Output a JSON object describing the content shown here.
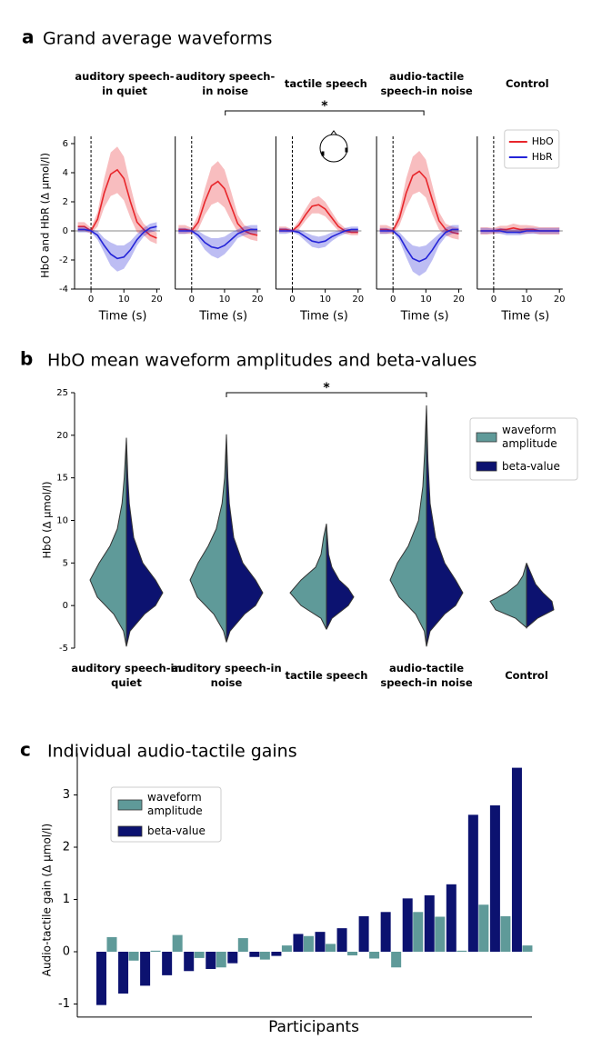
{
  "chart_data": [
    {
      "type": "line",
      "panel": "a",
      "title": "Grand average waveforms",
      "ylabel": "HbO and HbR (Δ µmol/l)",
      "xlabel": "Time (s)",
      "x": [
        -4,
        -2,
        0,
        2,
        4,
        6,
        8,
        10,
        12,
        14,
        16,
        18,
        20
      ],
      "xlim": [
        -5,
        21
      ],
      "xticks": [
        0,
        10,
        20
      ],
      "ylim": [
        -4,
        6.5
      ],
      "yticks": [
        -4,
        -2,
        0,
        2,
        4,
        6
      ],
      "annotation": "*",
      "annotation_between": [
        1,
        3
      ],
      "legend_panel": 4,
      "series": [
        {
          "name": "HbO",
          "color": "#e8262b"
        },
        {
          "name": "HbR",
          "color": "#2424d8"
        }
      ],
      "panels": [
        {
          "title": "auditory speech-in quiet",
          "series": [
            {
              "values": [
                0.3,
                0.3,
                0,
                0.8,
                2.6,
                3.9,
                4.2,
                3.6,
                2.0,
                0.6,
                0.1,
                -0.3,
                -0.5
              ],
              "error": [
                0.3,
                0.3,
                0.2,
                0.5,
                1.0,
                1.5,
                1.6,
                1.5,
                1.1,
                0.7,
                0.4,
                0.4,
                0.4
              ]
            },
            {
              "values": [
                0.1,
                0.1,
                0,
                -0.3,
                -1.0,
                -1.6,
                -1.9,
                -1.8,
                -1.3,
                -0.6,
                -0.1,
                0.2,
                0.3
              ],
              "error": [
                0.2,
                0.2,
                0.1,
                0.3,
                0.5,
                0.8,
                0.9,
                0.8,
                0.6,
                0.4,
                0.3,
                0.3,
                0.3
              ]
            }
          ]
        },
        {
          "title": "auditory speech-in noise",
          "series": [
            {
              "values": [
                0.1,
                0.1,
                0,
                0.6,
                2.0,
                3.1,
                3.4,
                2.9,
                1.7,
                0.5,
                0,
                -0.2,
                -0.3
              ],
              "error": [
                0.3,
                0.3,
                0.2,
                0.5,
                0.9,
                1.3,
                1.4,
                1.3,
                1.0,
                0.6,
                0.4,
                0.4,
                0.4
              ]
            },
            {
              "values": [
                0,
                0,
                0,
                -0.3,
                -0.8,
                -1.1,
                -1.2,
                -1.0,
                -0.6,
                -0.2,
                0,
                0.1,
                0.1
              ],
              "error": [
                0.2,
                0.2,
                0.1,
                0.3,
                0.5,
                0.6,
                0.7,
                0.6,
                0.5,
                0.3,
                0.3,
                0.3,
                0.3
              ]
            }
          ]
        },
        {
          "title": "tactile speech",
          "series": [
            {
              "values": [
                0.1,
                0.1,
                0,
                0.4,
                1.1,
                1.7,
                1.8,
                1.5,
                0.9,
                0.3,
                0,
                -0.1,
                -0.1
              ],
              "error": [
                0.2,
                0.2,
                0.1,
                0.3,
                0.4,
                0.5,
                0.6,
                0.5,
                0.4,
                0.3,
                0.2,
                0.2,
                0.2
              ]
            },
            {
              "values": [
                0,
                0,
                0,
                -0.1,
                -0.4,
                -0.7,
                -0.8,
                -0.7,
                -0.4,
                -0.2,
                0,
                0.1,
                0.1
              ],
              "error": [
                0.2,
                0.2,
                0.1,
                0.2,
                0.3,
                0.4,
                0.4,
                0.4,
                0.3,
                0.2,
                0.2,
                0.2,
                0.2
              ]
            }
          ]
        },
        {
          "title": "audio-tactile speech-in noise",
          "series": [
            {
              "values": [
                0.1,
                0.1,
                0,
                0.9,
                2.6,
                3.8,
                4.1,
                3.6,
                2.1,
                0.7,
                0.1,
                -0.1,
                -0.2
              ],
              "error": [
                0.3,
                0.3,
                0.2,
                0.5,
                1.0,
                1.3,
                1.4,
                1.3,
                1.0,
                0.6,
                0.4,
                0.4,
                0.4
              ]
            },
            {
              "values": [
                0,
                0,
                0,
                -0.4,
                -1.2,
                -1.9,
                -2.1,
                -1.9,
                -1.3,
                -0.6,
                -0.1,
                0.1,
                0.1
              ],
              "error": [
                0.2,
                0.2,
                0.1,
                0.3,
                0.6,
                0.9,
                1.0,
                0.9,
                0.7,
                0.4,
                0.3,
                0.3,
                0.3
              ]
            }
          ]
        },
        {
          "title": "Control",
          "series": [
            {
              "values": [
                0,
                0,
                0,
                0.1,
                0.1,
                0.2,
                0.1,
                0.1,
                0.1,
                0,
                0,
                0,
                0
              ],
              "error": [
                0.25,
                0.25,
                0.2,
                0.25,
                0.25,
                0.3,
                0.3,
                0.3,
                0.25,
                0.25,
                0.25,
                0.25,
                0.25
              ]
            },
            {
              "values": [
                0,
                0,
                0,
                0,
                -0.1,
                -0.1,
                -0.1,
                0,
                0,
                0,
                0,
                0,
                0
              ],
              "error": [
                0.2,
                0.2,
                0.15,
                0.2,
                0.2,
                0.2,
                0.2,
                0.2,
                0.2,
                0.2,
                0.2,
                0.2,
                0.2
              ]
            }
          ]
        }
      ]
    },
    {
      "type": "violin",
      "panel": "b",
      "title": "HbO mean waveform amplitudes and beta-values",
      "ylabel": "HbO (Δ µmol/l)",
      "categories": [
        "auditory speech-in quiet",
        "auditory speech-in noise",
        "tactile speech",
        "audio-tactile speech-in noise",
        "Control"
      ],
      "ylim": [
        -5,
        25
      ],
      "yticks": [
        -5,
        0,
        5,
        10,
        15,
        20,
        25
      ],
      "annotation": "*",
      "annotation_between": [
        1,
        3
      ],
      "legend": "upper right",
      "series": [
        {
          "name": "waveform amplitude",
          "color": "#5f9a99",
          "violins": [
            {
              "y": [
                -4.8,
                -3,
                -1,
                1,
                3,
                5,
                7,
                9,
                12,
                15,
                19.7
              ],
              "density": [
                0,
                0.08,
                0.35,
                0.8,
                1.0,
                0.75,
                0.45,
                0.25,
                0.12,
                0.06,
                0
              ]
            },
            {
              "y": [
                -4.3,
                -3,
                -1,
                1,
                3,
                5,
                7,
                9,
                12,
                15,
                20.1
              ],
              "density": [
                0,
                0.08,
                0.35,
                0.8,
                1.0,
                0.78,
                0.5,
                0.28,
                0.12,
                0.05,
                0
              ]
            },
            {
              "y": [
                -2.8,
                -1.5,
                0,
                1.5,
                3,
                4.5,
                6,
                8,
                9.6
              ],
              "density": [
                0,
                0.15,
                0.7,
                1.0,
                0.7,
                0.3,
                0.15,
                0.08,
                0
              ]
            },
            {
              "y": [
                -4.8,
                -3,
                -1,
                1,
                3,
                5,
                7,
                10,
                14,
                18,
                23.5
              ],
              "density": [
                0,
                0.06,
                0.3,
                0.75,
                1.0,
                0.8,
                0.5,
                0.22,
                0.1,
                0.05,
                0
              ]
            },
            {
              "y": [
                -2.6,
                -1.5,
                -0.5,
                0.5,
                1.5,
                2.5,
                3.5,
                5
              ],
              "density": [
                0,
                0.3,
                0.85,
                1.0,
                0.55,
                0.25,
                0.1,
                0
              ]
            }
          ]
        },
        {
          "name": "beta-value",
          "color": "#0c1270",
          "violins": [
            {
              "y": [
                -4.8,
                -3,
                -1,
                0,
                1.5,
                3,
                5,
                8,
                12,
                15,
                19.7
              ],
              "density": [
                0,
                0.1,
                0.5,
                0.8,
                1.0,
                0.8,
                0.45,
                0.2,
                0.08,
                0.04,
                0
              ]
            },
            {
              "y": [
                -4.3,
                -3,
                -1,
                0,
                1.5,
                3,
                5,
                8,
                12,
                15,
                20.1
              ],
              "density": [
                0,
                0.1,
                0.5,
                0.8,
                1.0,
                0.8,
                0.45,
                0.2,
                0.08,
                0.04,
                0
              ]
            },
            {
              "y": [
                -2.8,
                -1.5,
                0,
                1,
                2,
                3,
                4.5,
                6,
                9.6
              ],
              "density": [
                0,
                0.15,
                0.6,
                0.75,
                0.6,
                0.35,
                0.15,
                0.06,
                0
              ]
            },
            {
              "y": [
                -4.8,
                -3,
                -1,
                0,
                1.5,
                3,
                5,
                8,
                12,
                17,
                23.5
              ],
              "density": [
                0,
                0.1,
                0.5,
                0.8,
                1.0,
                0.8,
                0.5,
                0.25,
                0.1,
                0.04,
                0
              ]
            },
            {
              "y": [
                -2.6,
                -1.5,
                -0.5,
                0.5,
                1.5,
                2.5,
                3.5,
                4,
                5
              ],
              "density": [
                0,
                0.3,
                0.75,
                0.7,
                0.45,
                0.25,
                0.15,
                0.1,
                0
              ]
            }
          ]
        }
      ]
    },
    {
      "type": "bar",
      "panel": "c",
      "title": "Individual audio-tactile gains",
      "ylabel": "Audio-tactile gain  (Δ µmol/l)",
      "xlabel": "Participants",
      "ylim": [
        -1.25,
        3.8
      ],
      "yticks": [
        -1,
        0,
        1,
        2,
        3
      ],
      "legend": "upper left",
      "series": [
        {
          "name": "waveform amplitude",
          "color": "#5f9a99",
          "values": [
            0.28,
            -0.17,
            0.02,
            0.32,
            -0.12,
            -0.3,
            0.26,
            -0.15,
            0.12,
            0.3,
            0.15,
            -0.07,
            -0.13,
            -0.3,
            0.76,
            0.67,
            0.02,
            0.9,
            0.68,
            0.12
          ]
        },
        {
          "name": "beta-value",
          "color": "#0c1270",
          "values": [
            -1.02,
            -0.8,
            -0.65,
            -0.45,
            -0.37,
            -0.33,
            -0.22,
            -0.1,
            -0.08,
            0.34,
            0.38,
            0.45,
            0.68,
            0.76,
            1.02,
            1.08,
            1.29,
            2.62,
            2.8,
            3.52
          ]
        }
      ]
    }
  ]
}
